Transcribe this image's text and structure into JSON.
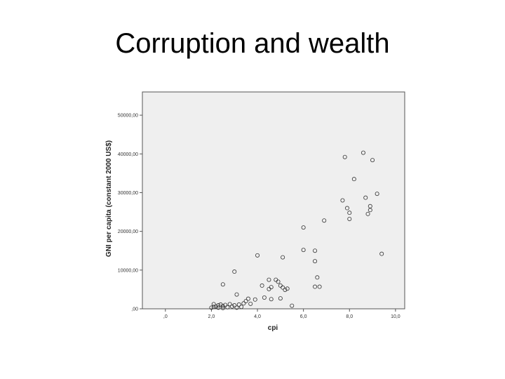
{
  "slide": {
    "title": "Corruption and wealth"
  },
  "colors": {
    "plot_background": "#efefef",
    "plot_border": "#555555",
    "marker": "#333333"
  },
  "chart_data": {
    "type": "scatter",
    "title": "",
    "xlabel": "cpi",
    "ylabel": "GNI per capita (constant 2000 US$)",
    "xlim": [
      -1.0,
      10.4
    ],
    "ylim": [
      0,
      56000
    ],
    "grid": false,
    "legend": "none",
    "x_ticks": [
      0,
      2,
      4,
      6,
      8,
      10
    ],
    "x_tick_labels": [
      ",0",
      "2,0",
      "4,0",
      "6,0",
      "8,0",
      "10,0"
    ],
    "y_ticks": [
      0,
      10000,
      20000,
      30000,
      40000,
      50000
    ],
    "y_tick_labels": [
      ",00",
      "10000,00",
      "20000,00",
      "30000,00",
      "40000,00",
      "50000,00"
    ],
    "series": [
      {
        "marker": "open-circle",
        "points": [
          [
            2.0,
            300
          ],
          [
            2.1,
            500
          ],
          [
            2.1,
            1200
          ],
          [
            2.2,
            600
          ],
          [
            2.3,
            900
          ],
          [
            2.3,
            300
          ],
          [
            2.4,
            1100
          ],
          [
            2.5,
            700
          ],
          [
            2.5,
            200
          ],
          [
            2.6,
            1000
          ],
          [
            2.7,
            400
          ],
          [
            2.8,
            1200
          ],
          [
            2.9,
            600
          ],
          [
            3.0,
            900
          ],
          [
            3.1,
            300
          ],
          [
            3.2,
            1100
          ],
          [
            3.3,
            500
          ],
          [
            3.4,
            1400
          ],
          [
            3.5,
            2000
          ],
          [
            3.6,
            2600
          ],
          [
            3.7,
            1300
          ],
          [
            3.1,
            3700
          ],
          [
            2.5,
            6300
          ],
          [
            3.0,
            9600
          ],
          [
            4.0,
            13800
          ],
          [
            3.9,
            2400
          ],
          [
            4.2,
            6000
          ],
          [
            4.3,
            2900
          ],
          [
            4.5,
            5100
          ],
          [
            4.5,
            7500
          ],
          [
            4.6,
            5600
          ],
          [
            4.6,
            2500
          ],
          [
            4.8,
            7500
          ],
          [
            4.9,
            7000
          ],
          [
            5.0,
            6000
          ],
          [
            5.0,
            2700
          ],
          [
            5.1,
            5500
          ],
          [
            5.2,
            4900
          ],
          [
            5.3,
            5200
          ],
          [
            5.5,
            800
          ],
          [
            5.1,
            13300
          ],
          [
            6.0,
            15200
          ],
          [
            6.0,
            21000
          ],
          [
            6.5,
            15000
          ],
          [
            6.5,
            12300
          ],
          [
            6.6,
            8100
          ],
          [
            6.5,
            5700
          ],
          [
            6.7,
            5700
          ],
          [
            6.9,
            22800
          ],
          [
            7.7,
            28000
          ],
          [
            7.8,
            39200
          ],
          [
            7.9,
            26000
          ],
          [
            8.0,
            24800
          ],
          [
            8.0,
            23200
          ],
          [
            8.2,
            33500
          ],
          [
            8.6,
            40300
          ],
          [
            8.7,
            28700
          ],
          [
            8.8,
            24500
          ],
          [
            8.9,
            26500
          ],
          [
            8.9,
            25500
          ],
          [
            9.0,
            38400
          ],
          [
            9.2,
            29700
          ],
          [
            9.4,
            14200
          ]
        ]
      }
    ]
  }
}
